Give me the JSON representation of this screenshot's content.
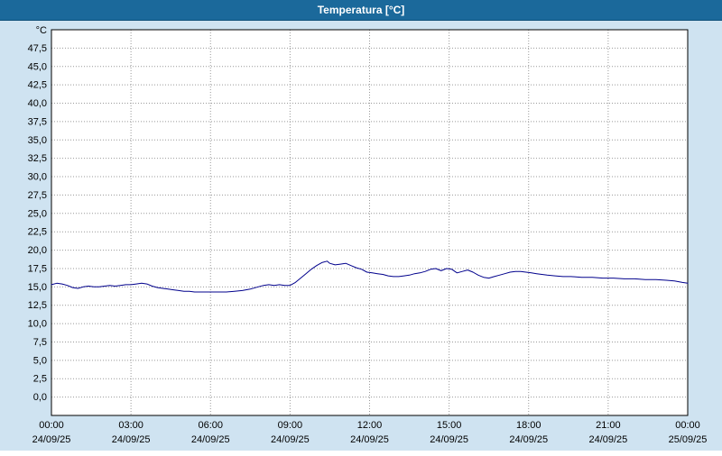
{
  "window": {
    "title": "Temperatura [°C]"
  },
  "colors": {
    "titlebar": "#1b699b",
    "titlebar_text": "#ffffff",
    "background": "#cfe3f1",
    "plot_background": "#ffffff",
    "plot_line": "#00008c",
    "grid": "#999999",
    "border": "#000000",
    "tick_text": "#000000"
  },
  "chart_data": {
    "type": "line",
    "title": "Temperatura [°C]",
    "ylabel": "°C",
    "unit_label": "°C",
    "ylim": [
      0,
      47.5
    ],
    "plot_range": [
      -2.5,
      50
    ],
    "xlim": [
      0,
      24
    ],
    "grid": true,
    "yticks": [
      0,
      2.5,
      5,
      7.5,
      10,
      12.5,
      15,
      17.5,
      20,
      22.5,
      25,
      27.5,
      30,
      32.5,
      35,
      37.5,
      40,
      42.5,
      45,
      47.5
    ],
    "ytick_labels": [
      "0,0",
      "2,5",
      "5,0",
      "7,5",
      "10,0",
      "12,5",
      "15,0",
      "17,5",
      "20,0",
      "22,5",
      "25,0",
      "27,5",
      "30,0",
      "32,5",
      "35,0",
      "37,5",
      "40,0",
      "42,5",
      "45,0",
      "47,5"
    ],
    "xticks": [
      {
        "h": 0,
        "time": "00:00",
        "date": "24/09/25"
      },
      {
        "h": 3,
        "time": "03:00",
        "date": "24/09/25"
      },
      {
        "h": 6,
        "time": "06:00",
        "date": "24/09/25"
      },
      {
        "h": 9,
        "time": "09:00",
        "date": "24/09/25"
      },
      {
        "h": 12,
        "time": "12:00",
        "date": "24/09/25"
      },
      {
        "h": 15,
        "time": "15:00",
        "date": "24/09/25"
      },
      {
        "h": 18,
        "time": "18:00",
        "date": "24/09/25"
      },
      {
        "h": 21,
        "time": "21:00",
        "date": "24/09/25"
      },
      {
        "h": 24,
        "time": "00:00",
        "date": "25/09/25"
      }
    ],
    "series": [
      {
        "name": "Temperatura",
        "color": "#00008c",
        "points": [
          [
            0,
            15.3
          ],
          [
            0.2,
            15.5
          ],
          [
            0.4,
            15.4
          ],
          [
            0.6,
            15.2
          ],
          [
            0.8,
            14.9
          ],
          [
            1,
            14.8
          ],
          [
            1.2,
            15.0
          ],
          [
            1.4,
            15.1
          ],
          [
            1.6,
            15.0
          ],
          [
            1.8,
            15.0
          ],
          [
            2,
            15.1
          ],
          [
            2.2,
            15.2
          ],
          [
            2.4,
            15.1
          ],
          [
            2.6,
            15.2
          ],
          [
            2.8,
            15.3
          ],
          [
            3,
            15.3
          ],
          [
            3.2,
            15.4
          ],
          [
            3.4,
            15.5
          ],
          [
            3.6,
            15.4
          ],
          [
            3.8,
            15.1
          ],
          [
            4,
            14.9
          ],
          [
            4.2,
            14.8
          ],
          [
            4.4,
            14.7
          ],
          [
            4.6,
            14.6
          ],
          [
            4.8,
            14.5
          ],
          [
            5,
            14.4
          ],
          [
            5.2,
            14.4
          ],
          [
            5.4,
            14.3
          ],
          [
            5.6,
            14.3
          ],
          [
            5.8,
            14.3
          ],
          [
            6,
            14.3
          ],
          [
            6.3,
            14.3
          ],
          [
            6.6,
            14.3
          ],
          [
            6.9,
            14.4
          ],
          [
            7.2,
            14.5
          ],
          [
            7.5,
            14.7
          ],
          [
            7.8,
            15.0
          ],
          [
            8,
            15.2
          ],
          [
            8.2,
            15.3
          ],
          [
            8.4,
            15.2
          ],
          [
            8.6,
            15.3
          ],
          [
            8.8,
            15.2
          ],
          [
            9,
            15.2
          ],
          [
            9.2,
            15.6
          ],
          [
            9.4,
            16.2
          ],
          [
            9.6,
            16.8
          ],
          [
            9.8,
            17.4
          ],
          [
            10,
            17.9
          ],
          [
            10.2,
            18.3
          ],
          [
            10.4,
            18.5
          ],
          [
            10.5,
            18.2
          ],
          [
            10.7,
            18.0
          ],
          [
            10.9,
            18.1
          ],
          [
            11.1,
            18.2
          ],
          [
            11.3,
            17.9
          ],
          [
            11.5,
            17.6
          ],
          [
            11.7,
            17.4
          ],
          [
            11.9,
            17.0
          ],
          [
            12.1,
            16.9
          ],
          [
            12.3,
            16.8
          ],
          [
            12.5,
            16.7
          ],
          [
            12.7,
            16.5
          ],
          [
            12.9,
            16.4
          ],
          [
            13.1,
            16.4
          ],
          [
            13.3,
            16.5
          ],
          [
            13.5,
            16.6
          ],
          [
            13.7,
            16.8
          ],
          [
            13.9,
            16.9
          ],
          [
            14.1,
            17.1
          ],
          [
            14.3,
            17.4
          ],
          [
            14.5,
            17.5
          ],
          [
            14.7,
            17.2
          ],
          [
            14.9,
            17.5
          ],
          [
            15.1,
            17.4
          ],
          [
            15.3,
            16.9
          ],
          [
            15.5,
            17.1
          ],
          [
            15.7,
            17.3
          ],
          [
            15.9,
            17.0
          ],
          [
            16.1,
            16.6
          ],
          [
            16.3,
            16.3
          ],
          [
            16.5,
            16.2
          ],
          [
            16.7,
            16.4
          ],
          [
            16.9,
            16.6
          ],
          [
            17.1,
            16.8
          ],
          [
            17.3,
            17.0
          ],
          [
            17.5,
            17.1
          ],
          [
            17.7,
            17.1
          ],
          [
            17.9,
            17.0
          ],
          [
            18.1,
            16.9
          ],
          [
            18.3,
            16.8
          ],
          [
            18.5,
            16.7
          ],
          [
            18.7,
            16.6
          ],
          [
            19,
            16.5
          ],
          [
            19.3,
            16.4
          ],
          [
            19.6,
            16.4
          ],
          [
            20,
            16.3
          ],
          [
            20.4,
            16.3
          ],
          [
            20.8,
            16.2
          ],
          [
            21.2,
            16.2
          ],
          [
            21.6,
            16.1
          ],
          [
            22,
            16.1
          ],
          [
            22.4,
            16.0
          ],
          [
            22.8,
            16.0
          ],
          [
            23.2,
            15.9
          ],
          [
            23.5,
            15.8
          ],
          [
            23.8,
            15.6
          ],
          [
            24,
            15.5
          ]
        ]
      }
    ]
  }
}
